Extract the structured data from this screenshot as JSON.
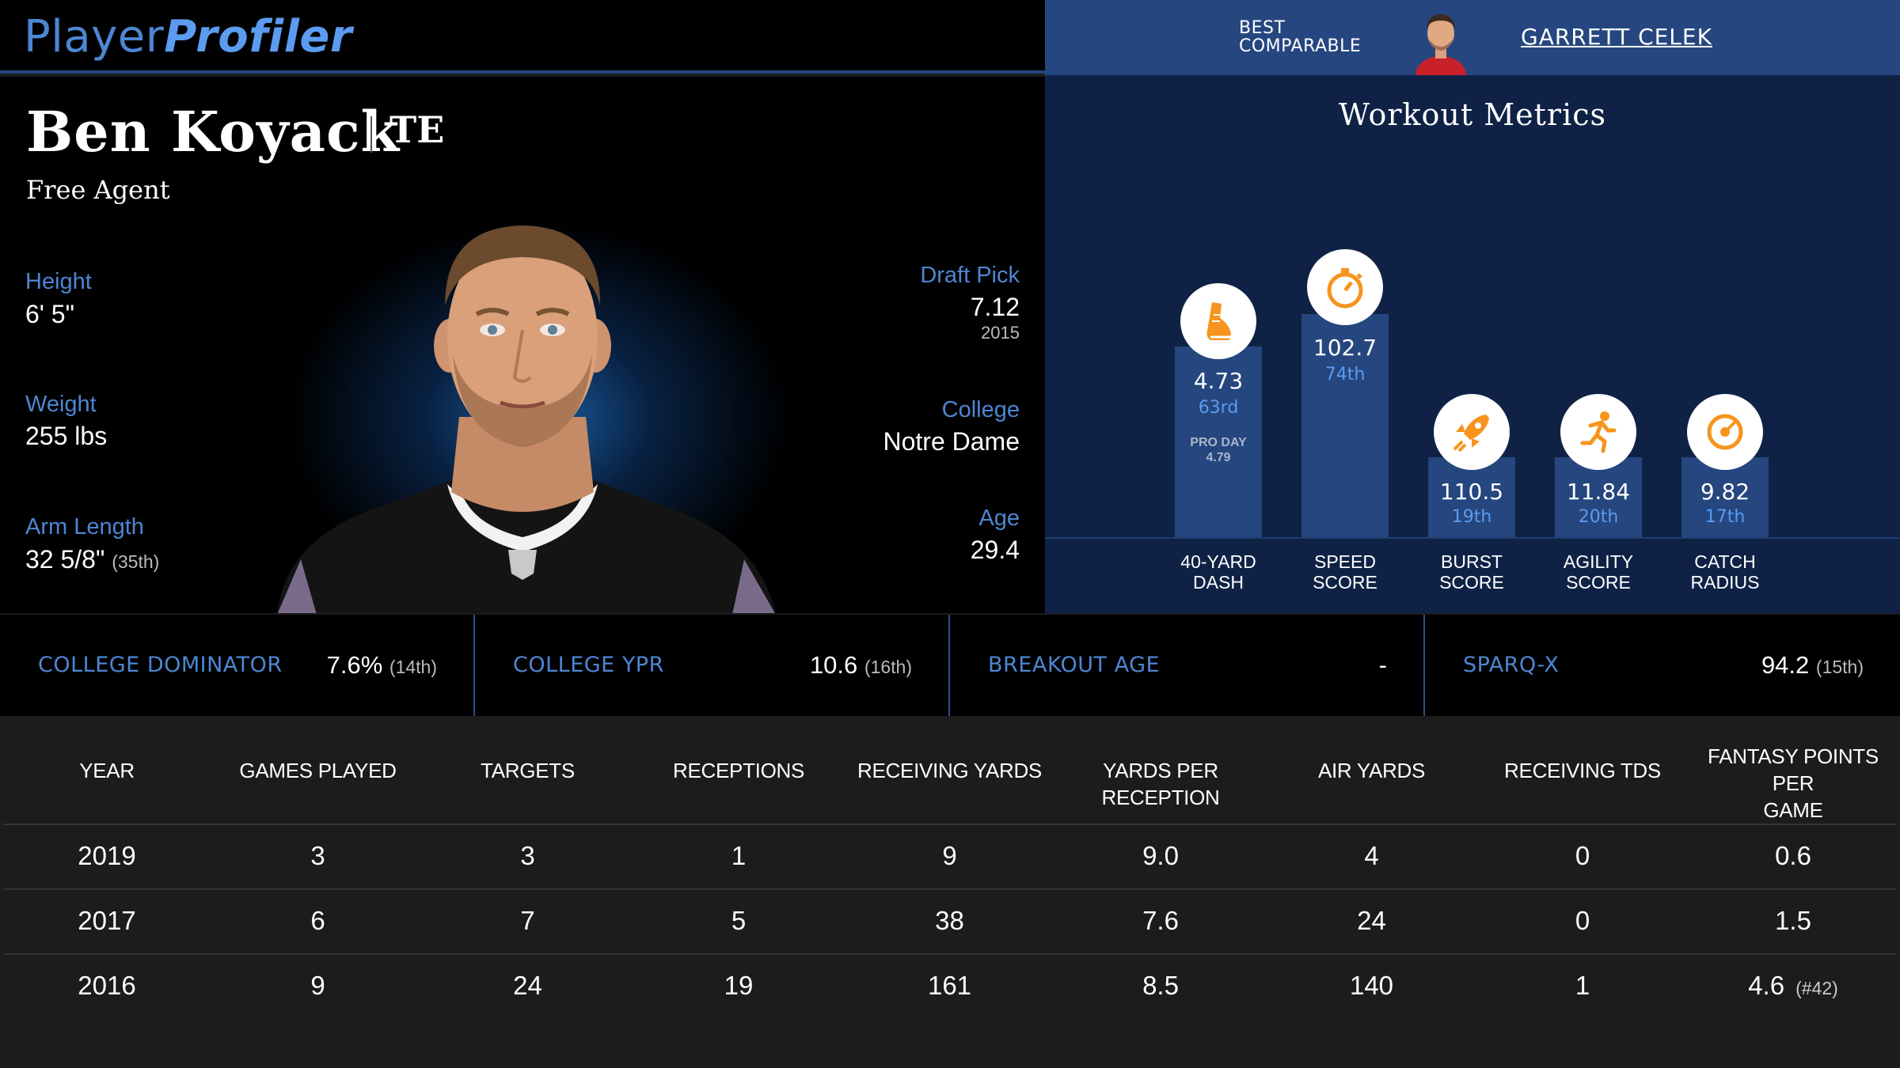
{
  "logo": {
    "part1": "Player",
    "part2": "Profiler"
  },
  "best_comparable": {
    "label_line1": "BEST",
    "label_line2": "COMPARABLE",
    "name": "GARRETT CELEK"
  },
  "player": {
    "name": "Ben Koyack",
    "position": "TE",
    "team": "Free Agent",
    "height_label": "Height",
    "height": "6' 5\"",
    "weight_label": "Weight",
    "weight": "255 lbs",
    "arm_label": "Arm Length",
    "arm": "32 5/8\"",
    "arm_pct": "(35th)",
    "draft_label": "Draft Pick",
    "draft": "7.12",
    "draft_year": "2015",
    "college_label": "College",
    "college": "Notre Dame",
    "age_label": "Age",
    "age": "29.4"
  },
  "workout": {
    "title": "Workout Metrics",
    "metrics": [
      {
        "value": "4.73",
        "pct": "63rd",
        "pro_label": "PRO DAY",
        "pro_value": "4.79",
        "name1": "40-YARD",
        "name2": "DASH",
        "icon": "running-shoe-icon"
      },
      {
        "value": "102.7",
        "pct": "74th",
        "name1": "SPEED",
        "name2": "SCORE",
        "icon": "stopwatch-icon"
      },
      {
        "value": "110.5",
        "pct": "19th",
        "name1": "BURST",
        "name2": "SCORE",
        "icon": "rocket-icon"
      },
      {
        "value": "11.84",
        "pct": "20th",
        "name1": "AGILITY",
        "name2": "SCORE",
        "icon": "runner-icon"
      },
      {
        "value": "9.82",
        "pct": "17th",
        "name1": "CATCH",
        "name2": "RADIUS",
        "icon": "target-icon"
      }
    ]
  },
  "advanced": [
    {
      "label": "COLLEGE DOMINATOR",
      "value": "7.6%",
      "pct": "(14th)"
    },
    {
      "label": "COLLEGE YPR",
      "value": "10.6",
      "pct": "(16th)"
    },
    {
      "label": "BREAKOUT AGE",
      "value": "-",
      "pct": ""
    },
    {
      "label": "SPARQ-X",
      "value": "94.2",
      "pct": "(15th)"
    }
  ],
  "table": {
    "headers": [
      "YEAR",
      "GAMES PLAYED",
      "TARGETS",
      "RECEPTIONS",
      "RECEIVING YARDS",
      "YARDS PER RECEPTION",
      "AIR YARDS",
      "RECEIVING TDS",
      "FANTASY POINTS PER",
      "GAME"
    ],
    "rows": [
      {
        "year": "2019",
        "games": "3",
        "targets": "3",
        "receptions": "1",
        "yards": "9",
        "ypr": "9.0",
        "air": "4",
        "tds": "0",
        "fppg": "0.6",
        "rank": ""
      },
      {
        "year": "2017",
        "games": "6",
        "targets": "7",
        "receptions": "5",
        "yards": "38",
        "ypr": "7.6",
        "air": "24",
        "tds": "0",
        "fppg": "1.5",
        "rank": ""
      },
      {
        "year": "2016",
        "games": "9",
        "targets": "24",
        "receptions": "19",
        "yards": "161",
        "ypr": "8.5",
        "air": "140",
        "tds": "1",
        "fppg": "4.6",
        "rank": "(#42)"
      }
    ]
  },
  "colors": {
    "accent": "#4d86d3",
    "bar": "#25467e",
    "panel": "#0f2246",
    "icon_orange": "#f7941d"
  }
}
